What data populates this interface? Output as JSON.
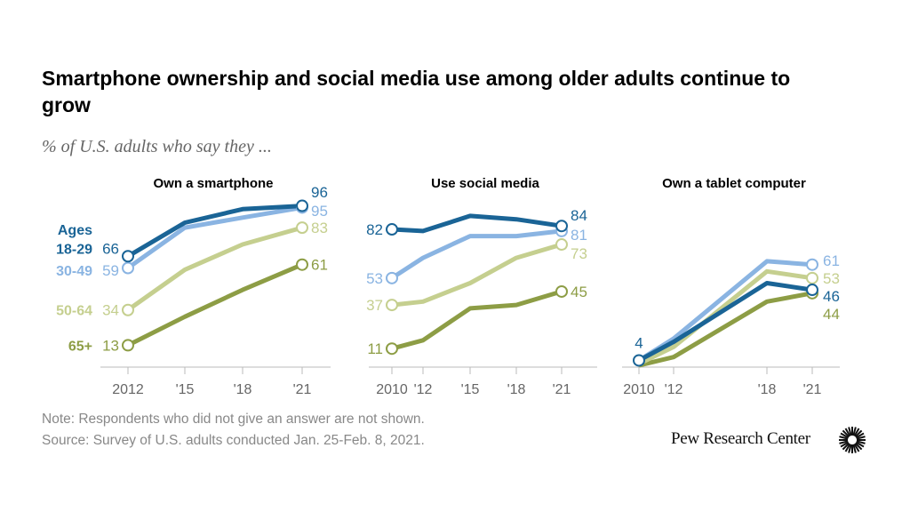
{
  "title": "Smartphone ownership and social media use among older adults continue to grow",
  "subtitle": "% of U.S. adults who say they ...",
  "note": "Note: Respondents who did not give an answer are not shown.",
  "source": "Source: Survey of U.S. adults conducted Jan. 25-Feb. 8, 2021.",
  "logo": "Pew Research Center",
  "legend_title": "Ages",
  "colors": {
    "18-29": "#1a6496",
    "30-49": "#8ab4e2",
    "50-64": "#c5cf8f",
    "65+": "#8d9d45",
    "axis": "#bbbbbb",
    "tick_label": "#666666"
  },
  "chart_data": [
    {
      "type": "line",
      "title": "Own a smartphone",
      "x": [
        2012,
        2015,
        2018,
        2021
      ],
      "tick_labels": [
        "2012",
        "'15",
        "'18",
        "'21"
      ],
      "ylim": [
        0,
        100
      ],
      "grid": false,
      "series": [
        {
          "name": "18-29",
          "values": [
            66,
            86,
            94,
            96
          ],
          "labels": {
            "start": "66",
            "end": "96"
          }
        },
        {
          "name": "30-49",
          "values": [
            59,
            83,
            89,
            95
          ],
          "labels": {
            "start": "59",
            "end": "95"
          }
        },
        {
          "name": "50-64",
          "values": [
            34,
            58,
            73,
            83
          ],
          "labels": {
            "start": "34",
            "end": "83"
          }
        },
        {
          "name": "65+",
          "values": [
            13,
            30,
            46,
            61
          ],
          "labels": {
            "start": "13",
            "end": "61"
          }
        }
      ]
    },
    {
      "type": "line",
      "title": "Use social media",
      "x": [
        2010,
        2012,
        2015,
        2018,
        2021
      ],
      "tick_labels": [
        "2010",
        "'12",
        "'15",
        "'18",
        "'21"
      ],
      "ylim": [
        0,
        100
      ],
      "grid": false,
      "series": [
        {
          "name": "18-29",
          "values": [
            82,
            81,
            90,
            88,
            84
          ],
          "labels": {
            "start": "82",
            "end": "84"
          }
        },
        {
          "name": "30-49",
          "values": [
            53,
            65,
            78,
            78,
            81
          ],
          "labels": {
            "start": "53",
            "end": "81"
          }
        },
        {
          "name": "50-64",
          "values": [
            37,
            39,
            50,
            65,
            73
          ],
          "labels": {
            "start": "37",
            "end": "73"
          }
        },
        {
          "name": "65+",
          "values": [
            11,
            16,
            35,
            37,
            45
          ],
          "labels": {
            "start": "11",
            "end": "45"
          }
        }
      ]
    },
    {
      "type": "line",
      "title": "Own a tablet computer",
      "x": [
        2010,
        2012,
        2018,
        2021
      ],
      "tick_labels": [
        "2010",
        "'12",
        "'18",
        "'21"
      ],
      "ylim": [
        0,
        100
      ],
      "grid": false,
      "series": [
        {
          "name": "18-29",
          "values": [
            4,
            15,
            50,
            46
          ],
          "labels": {
            "start": "4",
            "end": "46"
          }
        },
        {
          "name": "30-49",
          "values": [
            4,
            17,
            63,
            61
          ],
          "labels": {
            "end": "61"
          }
        },
        {
          "name": "50-64",
          "values": [
            2,
            12,
            57,
            53
          ],
          "labels": {
            "end": "53"
          }
        },
        {
          "name": "65+",
          "values": [
            1,
            6,
            39,
            44
          ],
          "labels": {
            "end": "44"
          }
        }
      ]
    }
  ]
}
